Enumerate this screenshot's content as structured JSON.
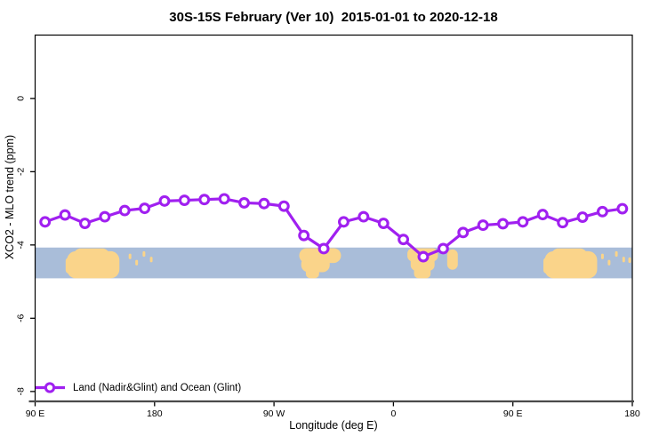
{
  "title": "30S-15S February (Ver 10)  2015-01-01 to 2020-12-18",
  "legend": {
    "label": "Land (Nadir&Glint) and Ocean (Glint)"
  },
  "colors": {
    "line": "#A020F0",
    "marker_fill": "#FFFFFF",
    "ocean": "#A9BDD9",
    "land": "#FAD48A",
    "axis": "#000000",
    "baseline": "#4A4A4A"
  },
  "chart_data": {
    "type": "line",
    "title": "30S-15S February (Ver 10)  2015-01-01 to 2020-12-18",
    "xlabel": "Longitude (deg E)",
    "ylabel": "XCO2 - MLO trend (ppm)",
    "xlim": [
      90,
      540
    ],
    "ylim": [
      -8.27,
      1.73
    ],
    "grid": false,
    "legend_position": "bottom-left-inside",
    "x_ticks": [
      {
        "pos": 90,
        "label": "90 E"
      },
      {
        "pos": 180,
        "label": "180"
      },
      {
        "pos": 270,
        "label": "90 W"
      },
      {
        "pos": 360,
        "label": "0"
      },
      {
        "pos": 450,
        "label": "90 E"
      },
      {
        "pos": 540,
        "label": "180"
      }
    ],
    "y_ticks": [
      {
        "pos": 0,
        "label": "0"
      },
      {
        "pos": -2,
        "label": "-2"
      },
      {
        "pos": -4,
        "label": "-4"
      },
      {
        "pos": -6,
        "label": "-6"
      },
      {
        "pos": -8,
        "label": "-8"
      }
    ],
    "series": [
      {
        "name": "Land (Nadir&Glint) and Ocean (Glint)",
        "x": [
          97.5,
          112.5,
          127.5,
          142.5,
          157.5,
          172.5,
          187.5,
          202.5,
          217.5,
          232.5,
          247.5,
          262.5,
          277.5,
          292.5,
          307.5,
          322.5,
          337.5,
          352.5,
          367.5,
          382.5,
          397.5,
          412.5,
          427.5,
          442.5,
          457.5,
          472.5,
          487.5,
          502.5,
          517.5,
          532.5
        ],
        "values": [
          -3.37,
          -3.18,
          -3.41,
          -3.23,
          -3.06,
          -3.0,
          -2.8,
          -2.78,
          -2.76,
          -2.74,
          -2.85,
          -2.87,
          -2.94,
          -3.74,
          -4.1,
          -3.37,
          -3.23,
          -3.41,
          -3.85,
          -4.32,
          -4.1,
          -3.66,
          -3.46,
          -3.42,
          -3.37,
          -3.17,
          -3.39,
          -3.24,
          -3.09,
          -3.01
        ]
      }
    ],
    "map_band": {
      "description": "30S-15S latitude strip of world map, longitudes 90E wrapping to 180",
      "value_top": -4.07,
      "value_bottom": -4.91,
      "regions": [
        {
          "name": "australia",
          "parts": [
            [
              114,
              153.5,
              0.12,
              1.0,
              10
            ],
            [
              119,
              146,
              0.03,
              0.62,
              8
            ],
            [
              113,
              118.5,
              0.32,
              0.85,
              4
            ]
          ]
        },
        {
          "name": "pacific-islands",
          "parts": [
            [
              160.5,
              162.5,
              0.2,
              0.38,
              2
            ],
            [
              165.5,
              167.5,
              0.4,
              0.58,
              2
            ],
            [
              171,
              173,
              0.12,
              0.3,
              2
            ],
            [
              176.5,
              178.5,
              0.3,
              0.48,
              2
            ]
          ]
        },
        {
          "name": "south-america",
          "parts": [
            [
              289,
              320.5,
              0.02,
              0.5,
              9
            ],
            [
              290.5,
              312,
              0.3,
              0.8,
              8
            ],
            [
              294,
              304,
              0.55,
              1.0,
              5
            ]
          ]
        },
        {
          "name": "africa",
          "parts": [
            [
              370.5,
              393.5,
              0.02,
              0.45,
              6
            ],
            [
              373,
              391,
              0.28,
              0.75,
              6
            ],
            [
              375.5,
              388,
              0.58,
              1.0,
              5
            ]
          ]
        },
        {
          "name": "madagascar",
          "parts": [
            [
              400.5,
              408.5,
              0.06,
              0.72,
              6
            ]
          ]
        },
        {
          "name": "australia-wrap",
          "parts": [
            [
              474,
              513.5,
              0.12,
              1.0,
              10
            ],
            [
              479,
              506,
              0.03,
              0.62,
              8
            ],
            [
              473,
              478.5,
              0.32,
              0.85,
              4
            ]
          ]
        },
        {
          "name": "pacific-islands-wrap",
          "parts": [
            [
              516.5,
              518.5,
              0.2,
              0.38,
              2
            ],
            [
              521.5,
              523.5,
              0.4,
              0.58,
              2
            ],
            [
              527,
              529,
              0.12,
              0.3,
              2
            ],
            [
              532.5,
              534.5,
              0.3,
              0.48,
              2
            ],
            [
              537,
              539,
              0.32,
              0.5,
              2
            ]
          ]
        }
      ]
    }
  }
}
